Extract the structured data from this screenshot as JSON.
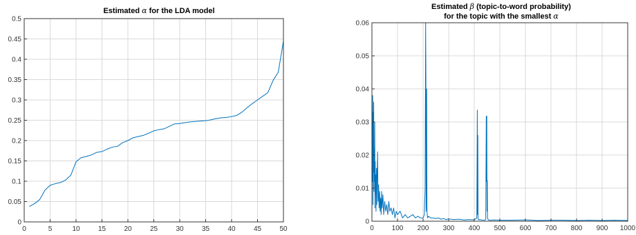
{
  "chart_data": [
    {
      "type": "line",
      "title_prefix": "Estimated ",
      "title_symbol": "α",
      "title_suffix": " for the LDA model",
      "xlim": [
        0,
        50
      ],
      "ylim": [
        0,
        0.5
      ],
      "xticks": [
        0,
        5,
        10,
        15,
        20,
        25,
        30,
        35,
        40,
        45,
        50
      ],
      "yticks": [
        0,
        0.05,
        0.1,
        0.15,
        0.2,
        0.25,
        0.3,
        0.35,
        0.4,
        0.45,
        0.5
      ],
      "grid": true,
      "color": "#0072BD",
      "series": [
        {
          "x": [
            1,
            2,
            3,
            4,
            5,
            6,
            7,
            8,
            9,
            10,
            11,
            12,
            13,
            14,
            15,
            16,
            17,
            18,
            19,
            20,
            21,
            22,
            23,
            24,
            25,
            26,
            27,
            28,
            29,
            30,
            31,
            32,
            33,
            34,
            35,
            36,
            37,
            38,
            39,
            40,
            41,
            42,
            43,
            44,
            45,
            46,
            47,
            48,
            49,
            50
          ],
          "values": [
            0.038,
            0.045,
            0.055,
            0.078,
            0.09,
            0.094,
            0.097,
            0.103,
            0.115,
            0.148,
            0.158,
            0.161,
            0.165,
            0.171,
            0.173,
            0.179,
            0.184,
            0.186,
            0.195,
            0.2,
            0.207,
            0.21,
            0.213,
            0.218,
            0.224,
            0.227,
            0.229,
            0.235,
            0.241,
            0.242,
            0.244,
            0.246,
            0.247,
            0.248,
            0.249,
            0.251,
            0.254,
            0.256,
            0.257,
            0.259,
            0.262,
            0.27,
            0.281,
            0.291,
            0.3,
            0.309,
            0.318,
            0.348,
            0.368,
            0.445
          ]
        }
      ]
    },
    {
      "type": "line",
      "title_line1_prefix": "Estimated ",
      "title_line1_symbol": "β",
      "title_line1_suffix": " (topic-to-word probability)",
      "title_line2_prefix": "for the topic with the smallest ",
      "title_line2_symbol": "α",
      "xlim": [
        0,
        1000
      ],
      "ylim": [
        0,
        0.06
      ],
      "xticks": [
        0,
        100,
        200,
        300,
        400,
        500,
        600,
        700,
        800,
        900,
        1000
      ],
      "yticks": [
        0,
        0.01,
        0.02,
        0.03,
        0.04,
        0.05,
        0.06
      ],
      "grid": true,
      "color": "#0072BD",
      "series": [
        {
          "x": [
            1,
            2,
            3,
            4,
            5,
            6,
            7,
            8,
            9,
            10,
            11,
            12,
            13,
            14,
            15,
            16,
            17,
            18,
            19,
            20,
            22,
            24,
            26,
            28,
            30,
            32,
            34,
            36,
            38,
            40,
            43,
            46,
            50,
            54,
            58,
            62,
            66,
            70,
            75,
            80,
            85,
            90,
            95,
            100,
            110,
            120,
            130,
            140,
            150,
            160,
            170,
            180,
            190,
            200,
            205,
            208,
            210,
            211,
            212,
            213,
            214,
            215,
            216,
            218,
            220,
            230,
            240,
            250,
            260,
            270,
            280,
            290,
            300,
            320,
            340,
            360,
            380,
            400,
            410,
            412,
            413,
            414,
            415,
            416,
            418,
            420,
            430,
            440,
            445,
            447,
            448,
            449,
            450,
            451,
            452,
            455,
            460,
            480,
            500,
            550,
            600,
            650,
            700,
            750,
            800,
            850,
            900,
            950,
            1000
          ],
          "values": [
            0.028,
            0.012,
            0.038,
            0.005,
            0.033,
            0.015,
            0.036,
            0.009,
            0.022,
            0.012,
            0.03,
            0.004,
            0.018,
            0.008,
            0.014,
            0.003,
            0.01,
            0.016,
            0.005,
            0.012,
            0.021,
            0.006,
            0.011,
            0.004,
            0.009,
            0.003,
            0.007,
            0.002,
            0.009,
            0.004,
            0.008,
            0.002,
            0.006,
            0.003,
            0.005,
            0.002,
            0.006,
            0.003,
            0.004,
            0.002,
            0.004,
            0.001,
            0.003,
            0.002,
            0.003,
            0.001,
            0.002,
            0.001,
            0.0015,
            0.002,
            0.001,
            0.0015,
            0.001,
            0.001,
            0.002,
            0.01,
            0.06,
            0.043,
            0.003,
            0.028,
            0.04,
            0.005,
            0.002,
            0.001,
            0.0015,
            0.001,
            0.001,
            0.0008,
            0.001,
            0.0006,
            0.0008,
            0.0005,
            0.0007,
            0.0005,
            0.0006,
            0.0004,
            0.0005,
            0.0004,
            0.001,
            0.0336,
            0.002,
            0.026,
            0.001,
            0.0005,
            0.0004,
            0.0005,
            0.0004,
            0.0003,
            0.0005,
            0.0317,
            0.012,
            0.0318,
            0.003,
            0.0123,
            0.001,
            0.0004,
            0.0003,
            0.0004,
            0.0003,
            0.0003,
            0.0004,
            0.0002,
            0.0003,
            0.0003,
            0.0002,
            0.0003,
            0.0002,
            0.0003,
            0.0002
          ]
        }
      ]
    }
  ]
}
